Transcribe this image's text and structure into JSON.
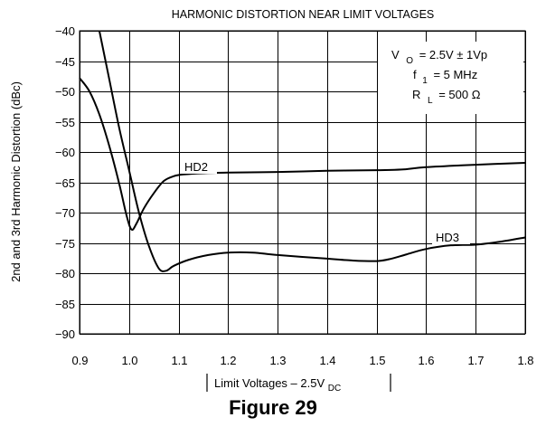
{
  "figure_label": "Figure 29",
  "chart_data": {
    "type": "line",
    "title": "HARMONIC DISTORTION NEAR LIMIT VOLTAGES",
    "ylabel": "2nd and 3rd Harmonic Distortion (dBc)",
    "xlabel": {
      "main": "Limit Voltages  – 2.5V",
      "sub": "DC"
    },
    "xlim": [
      0.9,
      1.8
    ],
    "ylim": [
      -90,
      -40
    ],
    "x_ticks": [
      0.9,
      1.0,
      1.1,
      1.2,
      1.3,
      1.4,
      1.5,
      1.6,
      1.7,
      1.8
    ],
    "x_tick_labels": [
      "0.9",
      "1.0",
      "1.1",
      "1.2",
      "1.3",
      "1.4",
      "1.5",
      "1.6",
      "1.7",
      "1.8"
    ],
    "y_ticks": [
      -40,
      -45,
      -50,
      -55,
      -60,
      -65,
      -70,
      -75,
      -80,
      -85,
      -90
    ],
    "y_tick_labels": [
      "−40",
      "−45",
      "−50",
      "−55",
      "−60",
      "−65",
      "−70",
      "−75",
      "−80",
      "−85",
      "−90"
    ],
    "grid": true,
    "conditions": [
      {
        "label": "V",
        "sub": "O",
        "value": "= 2.5V  ±  1Vp"
      },
      {
        "label": "f",
        "sub": "1",
        "value": "= 5 MHz"
      },
      {
        "label": "R",
        "sub": "L",
        "value": "= 500   Ω"
      }
    ],
    "series": [
      {
        "name": "HD2",
        "x": [
          0.9,
          0.92,
          0.94,
          0.96,
          0.98,
          0.995,
          1.005,
          1.015,
          1.03,
          1.05,
          1.07,
          1.09,
          1.11,
          1.15,
          1.2,
          1.3,
          1.4,
          1.5,
          1.55,
          1.6,
          1.7,
          1.8
        ],
        "y": [
          -47.8,
          -50.0,
          -53.8,
          -59.0,
          -65.2,
          -70.5,
          -72.8,
          -71.8,
          -69.3,
          -66.8,
          -64.8,
          -64.0,
          -63.7,
          -63.5,
          -63.4,
          -63.3,
          -63.1,
          -63.0,
          -62.9,
          -62.5,
          -62.1,
          -61.8
        ]
      },
      {
        "name": "HD3",
        "x": [
          0.94,
          0.96,
          0.98,
          1.0,
          1.02,
          1.04,
          1.06,
          1.075,
          1.09,
          1.12,
          1.16,
          1.2,
          1.25,
          1.3,
          1.4,
          1.45,
          1.5,
          1.53,
          1.56,
          1.6,
          1.65,
          1.7,
          1.75,
          1.8
        ],
        "y": [
          -40.0,
          -48.0,
          -56.0,
          -63.0,
          -70.0,
          -75.5,
          -79.2,
          -79.6,
          -78.8,
          -77.8,
          -77.0,
          -76.6,
          -76.6,
          -77.0,
          -77.6,
          -77.9,
          -78.0,
          -77.6,
          -76.9,
          -76.0,
          -75.4,
          -75.3,
          -74.8,
          -74.1
        ]
      }
    ]
  }
}
